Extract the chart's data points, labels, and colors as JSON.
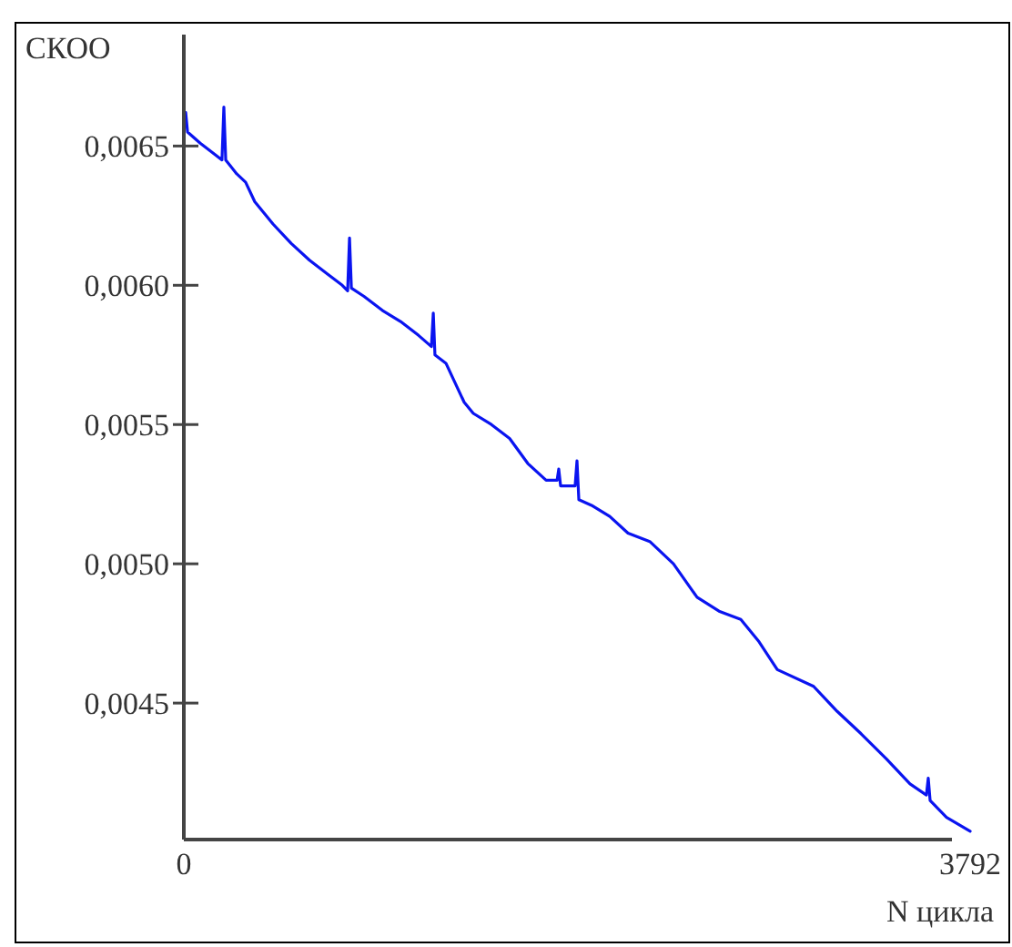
{
  "chart_data": {
    "type": "line",
    "xlabel": "N цикла",
    "ylabel": "СКОО",
    "xlim": [
      0,
      3792
    ],
    "xticks": [
      0,
      3792
    ],
    "ylim": [
      0.00401,
      0.0069
    ],
    "yticks": [
      {
        "value": 0.0045,
        "label": "0,0045"
      },
      {
        "value": 0.005,
        "label": "0,0050"
      },
      {
        "value": 0.0055,
        "label": "0,0055"
      },
      {
        "value": 0.006,
        "label": "0,0060"
      },
      {
        "value": 0.0065,
        "label": "0,0065"
      }
    ],
    "grid": false,
    "marker": "none",
    "line_style": "solid",
    "series": [
      {
        "color": "#0a14f0",
        "x": [
          9,
          18,
          79,
          149,
          184,
          193,
          202,
          255,
          298,
          342,
          386,
          430,
          518,
          606,
          693,
          764,
          790,
          799,
          808,
          869,
          957,
          1045,
          1132,
          1194,
          1203,
          1211,
          1264,
          1308,
          1352,
          1396,
          1483,
          1571,
          1659,
          1747,
          1800,
          1808,
          1817,
          1852,
          1887,
          1896,
          1905,
          1966,
          2054,
          2142,
          2247,
          2361,
          2475,
          2581,
          2686,
          2774,
          2862,
          3037,
          3151,
          3266,
          3388,
          3502,
          3581,
          3590,
          3599,
          3678,
          3792
        ],
        "values": [
          0.00662,
          0.00655,
          0.00651,
          0.00647,
          0.00645,
          0.00664,
          0.00645,
          0.0064,
          0.00637,
          0.0063,
          0.00626,
          0.00622,
          0.00615,
          0.00609,
          0.00604,
          0.006,
          0.00598,
          0.00617,
          0.00599,
          0.00596,
          0.00591,
          0.00587,
          0.00582,
          0.00578,
          0.0059,
          0.00575,
          0.00572,
          0.00565,
          0.00558,
          0.00554,
          0.0055,
          0.00545,
          0.00536,
          0.0053,
          0.0053,
          0.00534,
          0.00528,
          0.00528,
          0.00528,
          0.00537,
          0.00523,
          0.00521,
          0.00517,
          0.00511,
          0.00508,
          0.005,
          0.00488,
          0.00483,
          0.0048,
          0.00472,
          0.00462,
          0.00456,
          0.00447,
          0.00439,
          0.0043,
          0.00421,
          0.00417,
          0.00423,
          0.00415,
          0.00409,
          0.00404
        ]
      }
    ]
  }
}
